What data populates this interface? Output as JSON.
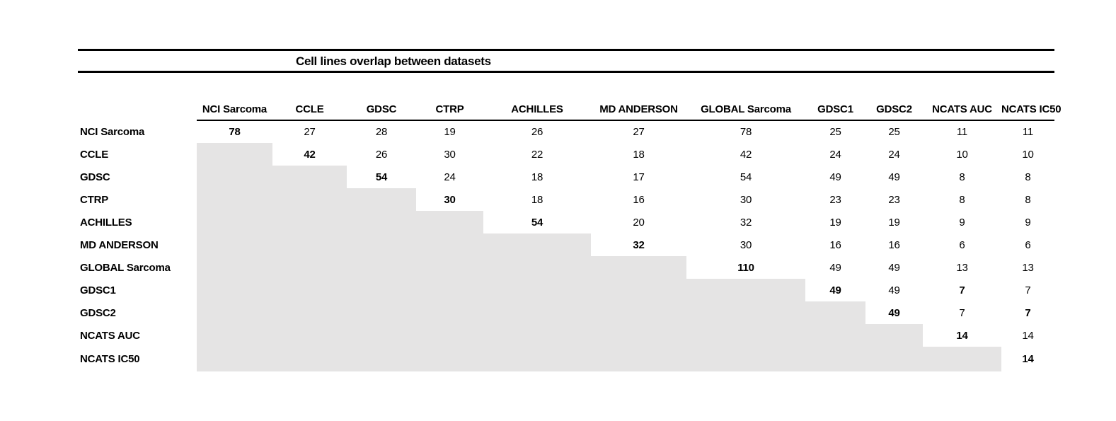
{
  "title": "Cell lines overlap between datasets",
  "columns": [
    "NCI Sarcoma",
    "CCLE",
    "GDSC",
    "CTRP",
    "ACHILLES",
    "MD ANDERSON",
    "GLOBAL Sarcoma",
    "GDSC1",
    "GDSC2",
    "NCATS AUC",
    "NCATS IC50"
  ],
  "rows": [
    {
      "label": "NCI Sarcoma",
      "cells": [
        {
          "v": "78",
          "bold": true
        },
        {
          "v": "27"
        },
        {
          "v": "28"
        },
        {
          "v": "19"
        },
        {
          "v": "26"
        },
        {
          "v": "27"
        },
        {
          "v": "78"
        },
        {
          "v": "25"
        },
        {
          "v": "25"
        },
        {
          "v": "11"
        },
        {
          "v": "11"
        }
      ]
    },
    {
      "label": "CCLE",
      "cells": [
        null,
        {
          "v": "42",
          "bold": true
        },
        {
          "v": "26"
        },
        {
          "v": "30"
        },
        {
          "v": "22"
        },
        {
          "v": "18"
        },
        {
          "v": "42"
        },
        {
          "v": "24"
        },
        {
          "v": "24"
        },
        {
          "v": "10"
        },
        {
          "v": "10"
        }
      ]
    },
    {
      "label": "GDSC",
      "cells": [
        null,
        null,
        {
          "v": "54",
          "bold": true
        },
        {
          "v": "24"
        },
        {
          "v": "18"
        },
        {
          "v": "17"
        },
        {
          "v": "54"
        },
        {
          "v": "49"
        },
        {
          "v": "49"
        },
        {
          "v": "8"
        },
        {
          "v": "8"
        }
      ]
    },
    {
      "label": "CTRP",
      "cells": [
        null,
        null,
        null,
        {
          "v": "30",
          "bold": true
        },
        {
          "v": "18"
        },
        {
          "v": "16"
        },
        {
          "v": "30"
        },
        {
          "v": "23"
        },
        {
          "v": "23"
        },
        {
          "v": "8"
        },
        {
          "v": "8"
        }
      ]
    },
    {
      "label": "ACHILLES",
      "cells": [
        null,
        null,
        null,
        null,
        {
          "v": "54",
          "bold": true
        },
        {
          "v": "20"
        },
        {
          "v": "32"
        },
        {
          "v": "19"
        },
        {
          "v": "19"
        },
        {
          "v": "9"
        },
        {
          "v": "9"
        }
      ]
    },
    {
      "label": "MD ANDERSON",
      "cells": [
        null,
        null,
        null,
        null,
        null,
        {
          "v": "32",
          "bold": true
        },
        {
          "v": "30"
        },
        {
          "v": "16"
        },
        {
          "v": "16"
        },
        {
          "v": "6"
        },
        {
          "v": "6"
        }
      ]
    },
    {
      "label": "GLOBAL Sarcoma",
      "cells": [
        null,
        null,
        null,
        null,
        null,
        null,
        {
          "v": "110",
          "bold": true
        },
        {
          "v": "49"
        },
        {
          "v": "49"
        },
        {
          "v": "13"
        },
        {
          "v": "13"
        }
      ]
    },
    {
      "label": "GDSC1",
      "cells": [
        null,
        null,
        null,
        null,
        null,
        null,
        null,
        {
          "v": "49",
          "bold": true
        },
        {
          "v": "49"
        },
        {
          "v": "7",
          "bold": true
        },
        {
          "v": "7"
        }
      ]
    },
    {
      "label": "GDSC2",
      "cells": [
        null,
        null,
        null,
        null,
        null,
        null,
        null,
        null,
        {
          "v": "49",
          "bold": true
        },
        {
          "v": "7"
        },
        {
          "v": "7",
          "bold": true
        }
      ]
    },
    {
      "label": "NCATS AUC",
      "cells": [
        null,
        null,
        null,
        null,
        null,
        null,
        null,
        null,
        null,
        {
          "v": "14",
          "bold": true
        },
        {
          "v": "14"
        }
      ]
    },
    {
      "label": "NCATS IC50",
      "cells": [
        null,
        null,
        null,
        null,
        null,
        null,
        null,
        null,
        null,
        null,
        {
          "v": "14",
          "bold": true
        }
      ]
    }
  ],
  "colors": {
    "shaded_cell": "#e5e4e4",
    "rule": "#000000",
    "text": "#000000",
    "background": "#ffffff"
  },
  "chart_data": {
    "type": "table",
    "title": "Cell lines overlap between datasets",
    "columns": [
      "NCI Sarcoma",
      "CCLE",
      "GDSC",
      "CTRP",
      "ACHILLES",
      "MD ANDERSON",
      "GLOBAL Sarcoma",
      "GDSC1",
      "GDSC2",
      "NCATS AUC",
      "NCATS IC50"
    ],
    "row_labels": [
      "NCI Sarcoma",
      "CCLE",
      "GDSC",
      "CTRP",
      "ACHILLES",
      "MD ANDERSON",
      "GLOBAL Sarcoma",
      "GDSC1",
      "GDSC2",
      "NCATS AUC",
      "NCATS IC50"
    ],
    "matrix": [
      [
        78,
        27,
        28,
        19,
        26,
        27,
        78,
        25,
        25,
        11,
        11
      ],
      [
        null,
        42,
        26,
        30,
        22,
        18,
        42,
        24,
        24,
        10,
        10
      ],
      [
        null,
        null,
        54,
        24,
        18,
        17,
        54,
        49,
        49,
        8,
        8
      ],
      [
        null,
        null,
        null,
        30,
        18,
        16,
        30,
        23,
        23,
        8,
        8
      ],
      [
        null,
        null,
        null,
        null,
        54,
        20,
        32,
        19,
        19,
        9,
        9
      ],
      [
        null,
        null,
        null,
        null,
        null,
        32,
        30,
        16,
        16,
        6,
        6
      ],
      [
        null,
        null,
        null,
        null,
        null,
        null,
        110,
        49,
        49,
        13,
        13
      ],
      [
        null,
        null,
        null,
        null,
        null,
        null,
        null,
        49,
        49,
        7,
        7
      ],
      [
        null,
        null,
        null,
        null,
        null,
        null,
        null,
        null,
        49,
        7,
        7
      ],
      [
        null,
        null,
        null,
        null,
        null,
        null,
        null,
        null,
        null,
        14,
        14
      ],
      [
        null,
        null,
        null,
        null,
        null,
        null,
        null,
        null,
        null,
        null,
        14
      ]
    ],
    "layout": {
      "grid": false,
      "lower_triangle": "shaded gray, no values",
      "bold_cells": "diagonal values, plus GDSC1/NCATS AUC and GDSC2/NCATS IC50"
    }
  }
}
